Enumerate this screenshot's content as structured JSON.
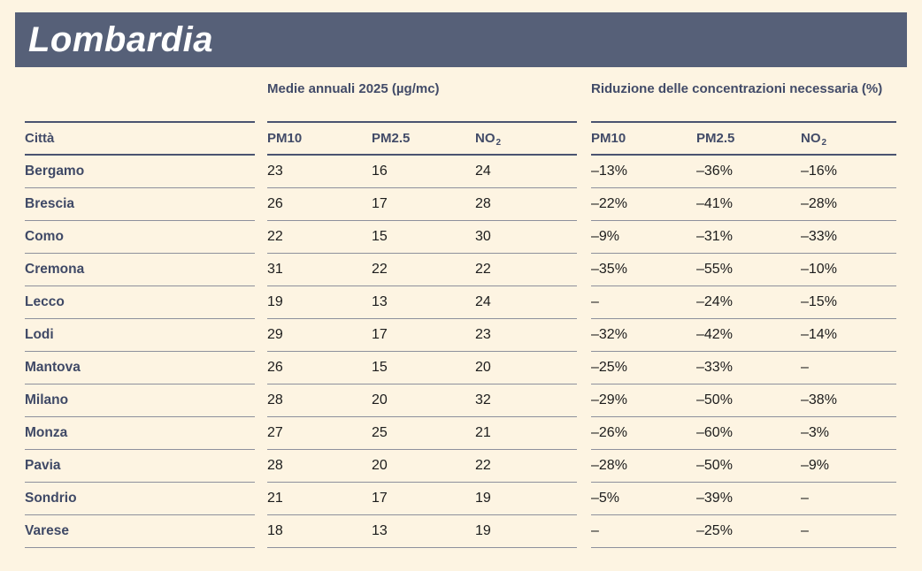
{
  "page": {
    "background": "#fdf4e2"
  },
  "header": {
    "title": "Lombardia",
    "background": "#566078",
    "text_color": "#ffffff"
  },
  "table": {
    "city_header": "Città",
    "group_headers": [
      {
        "label": "Medie annuali 2025 (µg/mc)"
      },
      {
        "label": "Riduzione delle concentrazioni necessaria (%)"
      }
    ],
    "pollutants": {
      "pm10": "PM10",
      "pm25": "PM2.5",
      "no2_base": "NO",
      "no2_sub": "2"
    }
  },
  "colors": {
    "header_rule": "#4a5370",
    "row_rule": "#8d909c",
    "heading_text": "#424b68",
    "city_text": "#3f4966",
    "value_text": "#1c1c1c"
  },
  "chart_data": {
    "type": "table",
    "title": "Lombardia",
    "column_groups": [
      "Medie annuali 2025 (µg/mc)",
      "Riduzione delle concentrazioni necessaria (%)"
    ],
    "columns": [
      "Città",
      "PM10",
      "PM2.5",
      "NO2",
      "PM10",
      "PM2.5",
      "NO2"
    ],
    "rows": [
      [
        "Bergamo",
        "23",
        "16",
        "24",
        "–13%",
        "–36%",
        "–16%"
      ],
      [
        "Brescia",
        "26",
        "17",
        "28",
        "–22%",
        "–41%",
        "–28%"
      ],
      [
        "Como",
        "22",
        "15",
        "30",
        "–9%",
        "–31%",
        "–33%"
      ],
      [
        "Cremona",
        "31",
        "22",
        "22",
        "–35%",
        "–55%",
        "–10%"
      ],
      [
        "Lecco",
        "19",
        "13",
        "24",
        "–",
        "–24%",
        "–15%"
      ],
      [
        "Lodi",
        "29",
        "17",
        "23",
        "–32%",
        "–42%",
        "–14%"
      ],
      [
        "Mantova",
        "26",
        "15",
        "20",
        "–25%",
        "–33%",
        "–"
      ],
      [
        "Milano",
        "28",
        "20",
        "32",
        "–29%",
        "–50%",
        "–38%"
      ],
      [
        "Monza",
        "27",
        "25",
        "21",
        "–26%",
        "–60%",
        "–3%"
      ],
      [
        "Pavia",
        "28",
        "20",
        "22",
        "–28%",
        "–50%",
        "–9%"
      ],
      [
        "Sondrio",
        "21",
        "17",
        "19",
        "–5%",
        "–39%",
        "–"
      ],
      [
        "Varese",
        "18",
        "13",
        "19",
        "–",
        "–25%",
        "–"
      ]
    ]
  }
}
